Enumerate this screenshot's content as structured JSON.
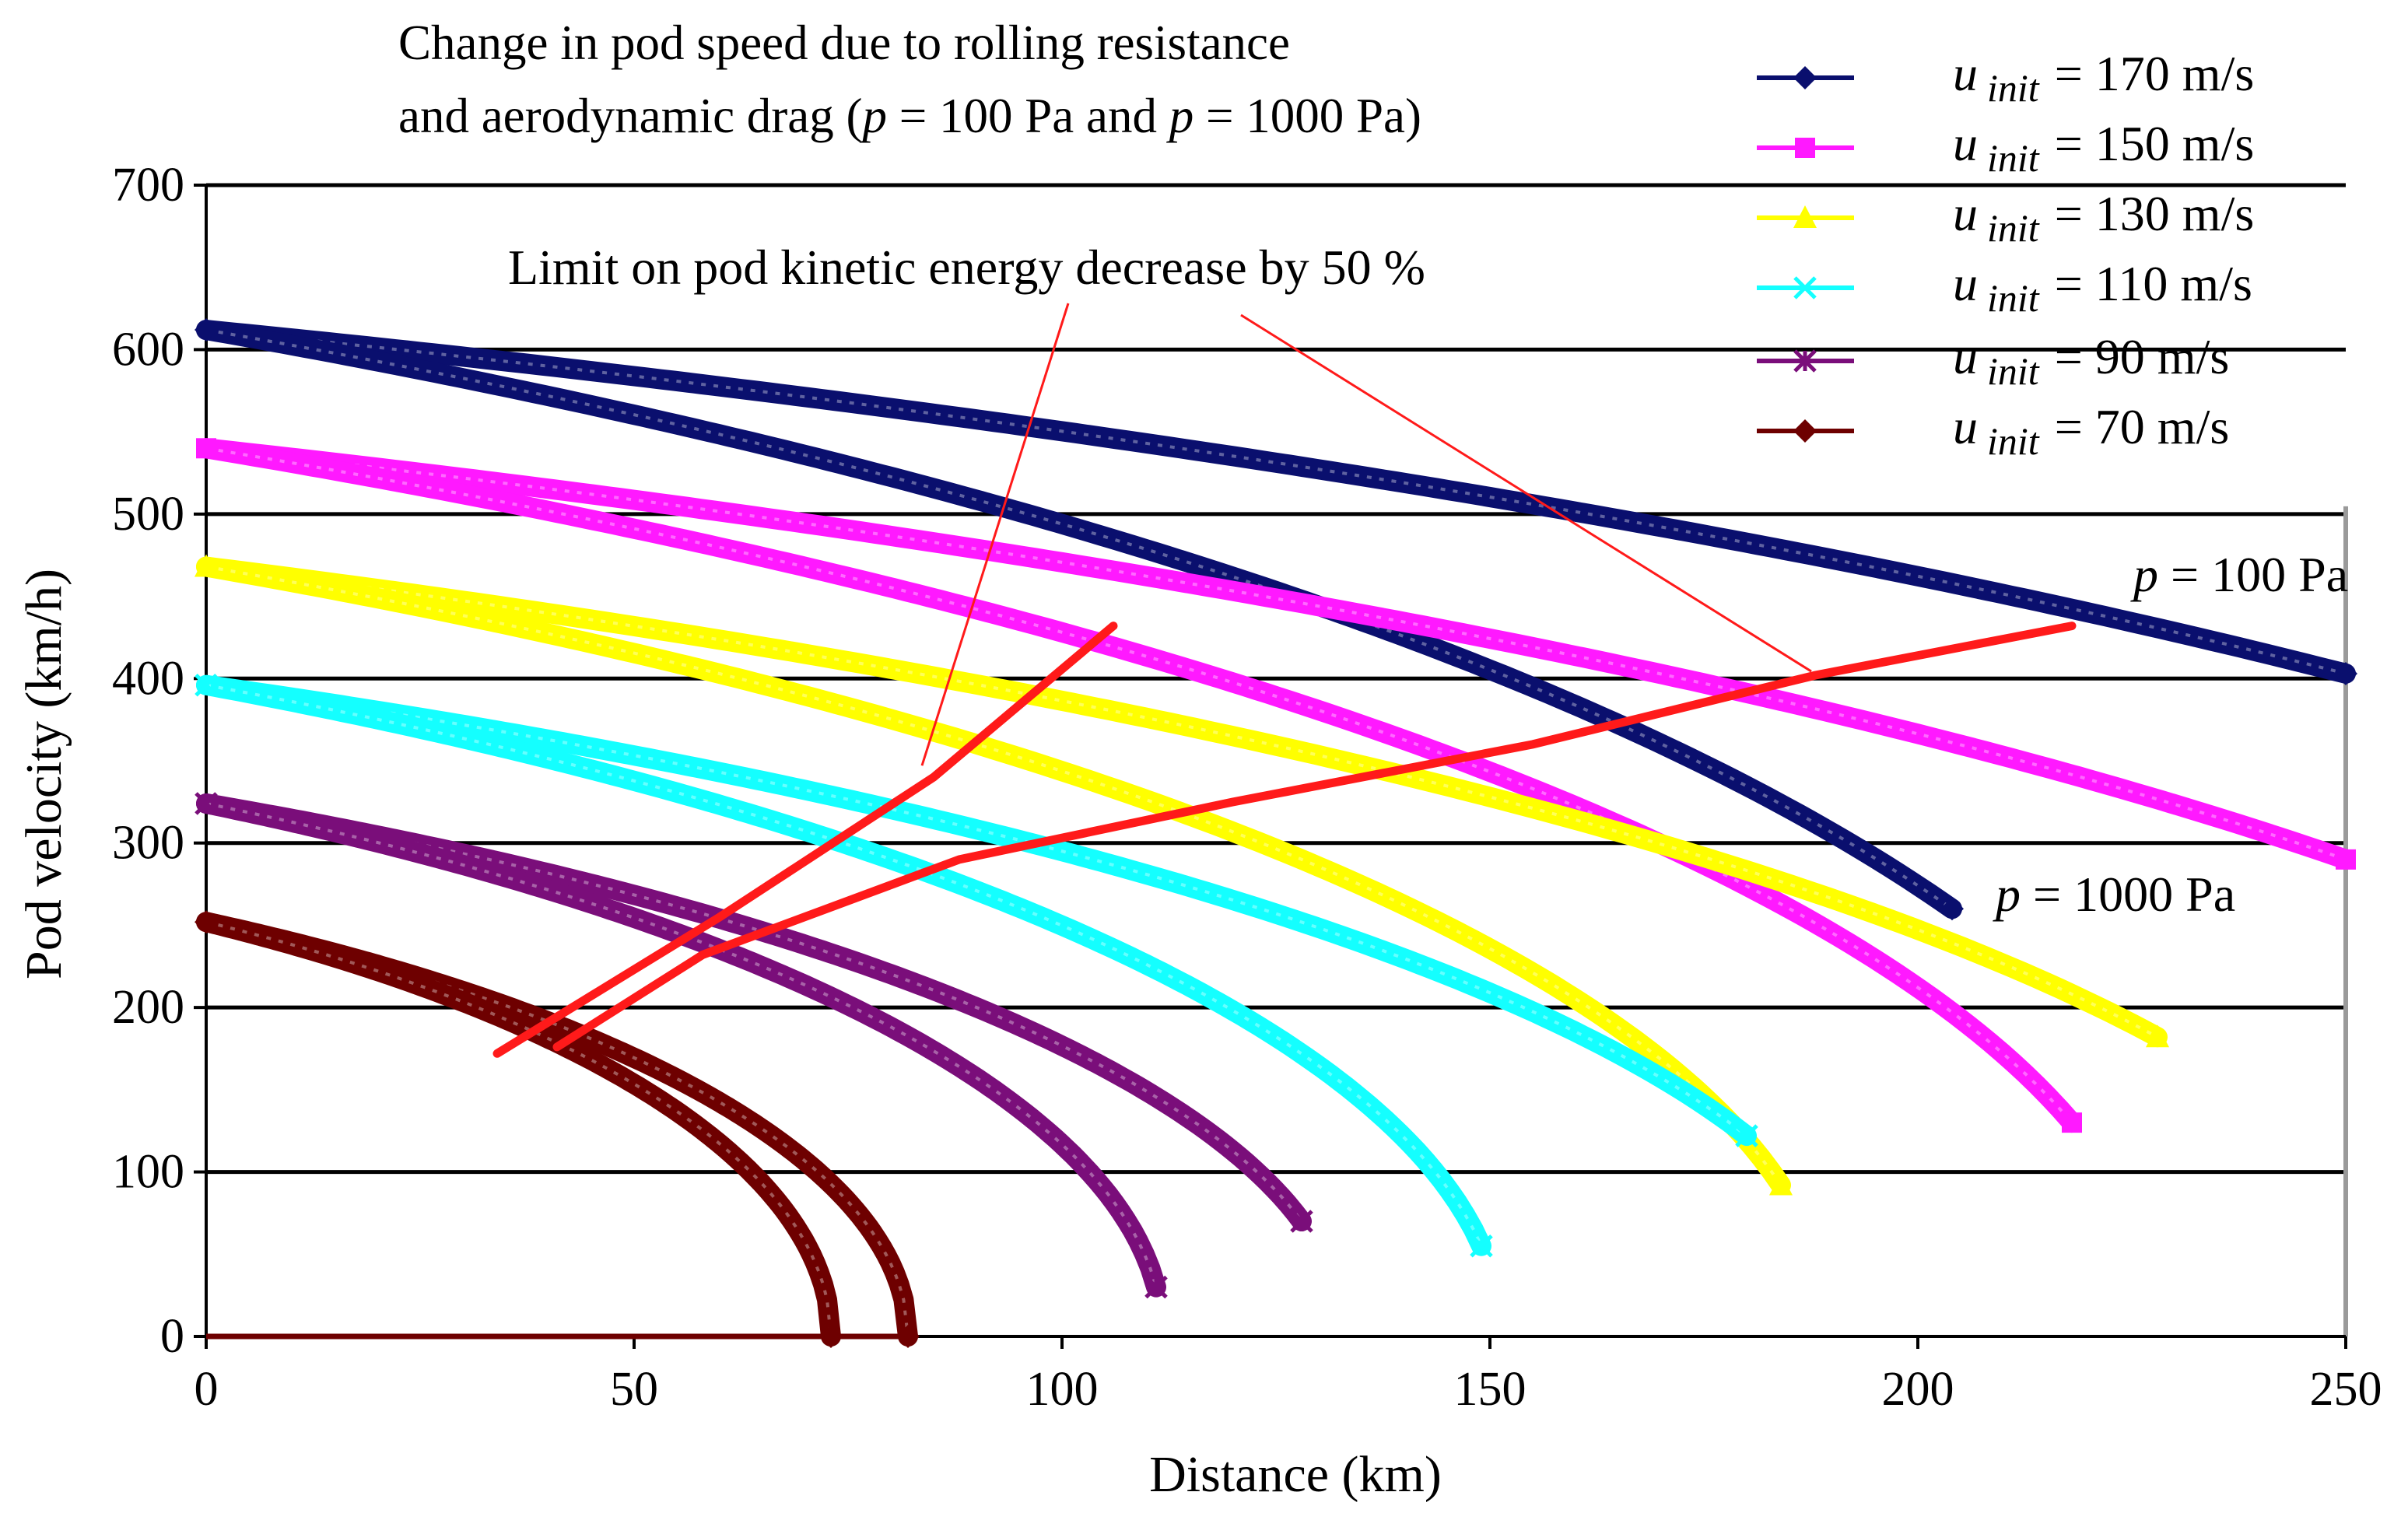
{
  "chart_data": {
    "type": "line",
    "title_line1": "Change in pod speed due to rolling resistance",
    "title_line2_pre": "and aerodynamic drag (",
    "title_p": "p",
    "title_line2_mid": " = 100 Pa and ",
    "title_line2_post": " = 1000 Pa)",
    "xlabel": "Distance (km)",
    "ylabel": "Pod velocity (km/h)",
    "xlim": [
      0,
      250
    ],
    "ylim": [
      0,
      700
    ],
    "xticks": [
      "0",
      "50",
      "100",
      "150",
      "200",
      "250"
    ],
    "yticks": [
      "0",
      "100",
      "200",
      "300",
      "400",
      "500",
      "600",
      "700"
    ],
    "grid": "horizontal",
    "legend_position": "top-right",
    "legend_var": "u",
    "legend_sub": "init",
    "series": [
      {
        "name": "= 170 m/s",
        "color": "#0a0f6e",
        "marker": "diamond",
        "v0": 612,
        "p100": {
          "x_end": 250,
          "v_end": 403
        },
        "p1000": {
          "x_end": 204,
          "v_end": 260
        }
      },
      {
        "name": "= 150 m/s",
        "color": "#ff19ff",
        "marker": "square",
        "v0": 540,
        "p100": {
          "x_end": 250,
          "v_end": 290
        },
        "p1000": {
          "x_end": 218,
          "v_end": 130
        }
      },
      {
        "name": "= 130 m/s",
        "color": "#ffff00",
        "marker": "triangle",
        "v0": 468,
        "p100": {
          "x_end": 228,
          "v_end": 182
        },
        "p1000": {
          "x_end": 184,
          "v_end": 92
        }
      },
      {
        "name": "= 110 m/s",
        "color": "#14ffff",
        "marker": "x",
        "v0": 396,
        "p100": {
          "x_end": 180,
          "v_end": 122
        },
        "p1000": {
          "x_end": 149,
          "v_end": 55
        }
      },
      {
        "name": "=  90 m/s",
        "color": "#7a0e7a",
        "marker": "star",
        "v0": 324,
        "p100": {
          "x_end": 128,
          "v_end": 70
        },
        "p1000": {
          "x_end": 111,
          "v_end": 30
        }
      },
      {
        "name": "=  70 m/s",
        "color": "#6e0000",
        "marker": "diamond",
        "v0": 252,
        "p100": {
          "x_end": 82,
          "v_end": 0
        },
        "p1000": {
          "x_end": 73,
          "v_end": 0
        }
      }
    ],
    "limit_lines": [
      {
        "name": "p100",
        "points": [
          [
            41,
            176
          ],
          [
            58,
            232
          ],
          [
            88,
            290
          ],
          [
            120,
            325
          ],
          [
            155,
            360
          ],
          [
            188,
            402
          ],
          [
            218,
            432
          ]
        ]
      },
      {
        "name": "p1000",
        "points": [
          [
            34,
            172
          ],
          [
            60,
            255
          ],
          [
            85,
            340
          ],
          [
            106,
            432
          ]
        ]
      }
    ],
    "annotation": "Limit on pod kinetic energy decrease by 50 %",
    "pressure_labels": {
      "p_var": "p",
      "p100": " = 100 Pa",
      "p1000": " = 1000 Pa"
    }
  }
}
